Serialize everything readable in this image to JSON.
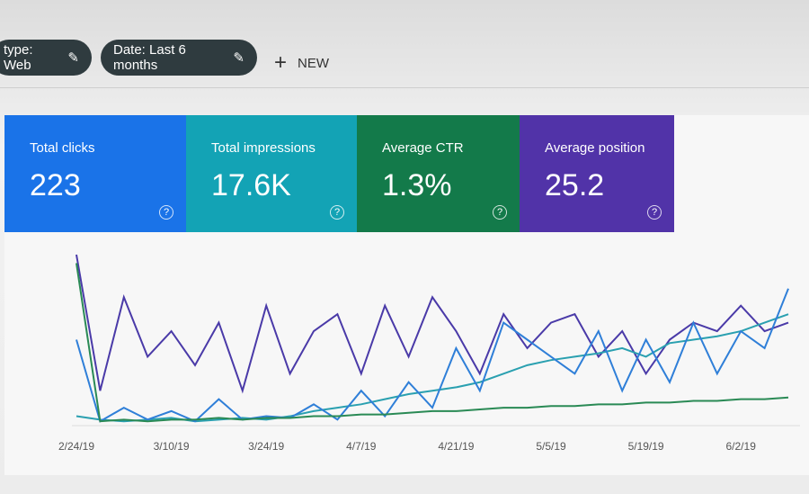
{
  "filters": [
    {
      "label": "type: Web"
    },
    {
      "label": "Date: Last 6 months"
    }
  ],
  "new_button": "NEW",
  "metrics": [
    {
      "label": "Total clicks",
      "value": "223",
      "color": "#1a73e8"
    },
    {
      "label": "Total impressions",
      "value": "17.6K",
      "color": "#13a3b5"
    },
    {
      "label": "Average CTR",
      "value": "1.3%",
      "color": "#137a4a"
    },
    {
      "label": "Average position",
      "value": "25.2",
      "color": "#5133a8"
    }
  ],
  "chart_data": {
    "type": "line",
    "categories": [
      "2/24/19",
      null,
      null,
      null,
      "3/10/19",
      null,
      null,
      null,
      "3/24/19",
      null,
      null,
      null,
      "4/7/19",
      null,
      null,
      null,
      "4/21/19",
      null,
      null,
      null,
      "5/5/19",
      null,
      null,
      null,
      "5/19/19",
      null,
      null,
      null,
      "6/2/19",
      null,
      null
    ],
    "series": [
      {
        "color": "#4a3aa8",
        "values": [
          100,
          20,
          75,
          40,
          55,
          35,
          60,
          20,
          70,
          30,
          55,
          65,
          30,
          70,
          40,
          75,
          55,
          30,
          65,
          45,
          60,
          65,
          40,
          55,
          30,
          50,
          60,
          55,
          70,
          55,
          60
        ]
      },
      {
        "color": "#2aa0b0",
        "values": [
          5,
          3,
          2,
          3,
          4,
          2,
          3,
          4,
          3,
          5,
          8,
          10,
          12,
          15,
          18,
          20,
          22,
          25,
          30,
          35,
          38,
          40,
          42,
          45,
          40,
          48,
          50,
          52,
          55,
          60,
          65
        ]
      },
      {
        "color": "#2f7fd8",
        "values": [
          50,
          2,
          10,
          3,
          8,
          2,
          15,
          3,
          5,
          4,
          12,
          3,
          20,
          5,
          25,
          10,
          45,
          20,
          60,
          50,
          40,
          30,
          55,
          20,
          50,
          25,
          60,
          30,
          55,
          45,
          80
        ]
      },
      {
        "color": "#2a8a55",
        "values": [
          95,
          2,
          3,
          2,
          3,
          3,
          4,
          3,
          4,
          4,
          5,
          5,
          6,
          6,
          7,
          8,
          8,
          9,
          10,
          10,
          11,
          11,
          12,
          12,
          13,
          13,
          14,
          14,
          15,
          15,
          16
        ]
      }
    ]
  }
}
